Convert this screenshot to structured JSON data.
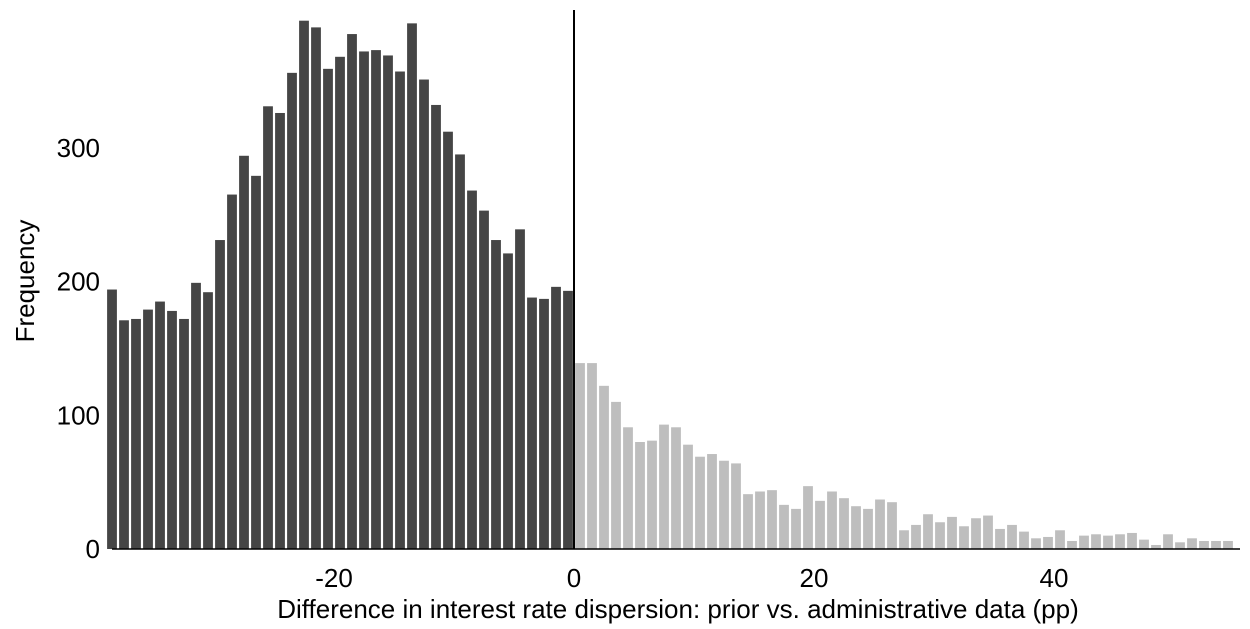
{
  "chart_data": {
    "type": "bar",
    "title": "",
    "xlabel": "Difference in interest rate dispersion: prior vs. administrative data (pp)",
    "ylabel": "Frequency",
    "xlim": [
      -38.5,
      55.5
    ],
    "ylim": [
      0,
      400
    ],
    "grid": false,
    "legend": "none",
    "bin_width": 1,
    "x_ticks": [
      -20,
      0,
      20,
      40
    ],
    "x_tick_labels": [
      "-20",
      "0",
      "20",
      "40"
    ],
    "y_ticks": [
      0,
      100,
      200,
      300
    ],
    "y_tick_labels": [
      "0",
      "100",
      "200",
      "300"
    ],
    "reference_line_x": 0,
    "colors": {
      "negative": "#454545",
      "positive": "#bebebe",
      "axis": "#000000"
    },
    "series": [
      {
        "x": [
          -38.5,
          -37.5,
          -36.5,
          -35.5,
          -34.5,
          -33.5,
          -32.5,
          -31.5,
          -30.5,
          -29.5,
          -28.5,
          -27.5,
          -26.5,
          -25.5,
          -24.5,
          -23.5,
          -22.5,
          -21.5,
          -20.5,
          -19.5,
          -18.5,
          -17.5,
          -16.5,
          -15.5,
          -14.5,
          -13.5,
          -12.5,
          -11.5,
          -10.5,
          -9.5,
          -8.5,
          -7.5,
          -6.5,
          -5.5,
          -4.5,
          -3.5,
          -2.5,
          -1.5,
          -0.5
        ],
        "values": [
          194,
          171,
          172,
          179,
          185,
          178,
          172,
          199,
          192,
          231,
          265,
          294,
          279,
          331,
          326,
          356,
          395,
          390,
          359,
          368,
          385,
          372,
          373,
          369,
          357,
          393,
          351,
          332,
          312,
          295,
          268,
          253,
          231,
          221,
          239,
          188,
          187,
          196,
          193
        ]
      },
      {
        "x": [
          0.5,
          1.5,
          2.5,
          3.5,
          4.5,
          5.5,
          6.5,
          7.5,
          8.5,
          9.5,
          10.5,
          11.5,
          12.5,
          13.5,
          14.5,
          15.5,
          16.5,
          17.5,
          18.5,
          19.5,
          20.5,
          21.5,
          22.5,
          23.5,
          24.5,
          25.5,
          26.5,
          27.5,
          28.5,
          29.5,
          30.5,
          31.5,
          32.5,
          33.5,
          34.5,
          35.5,
          36.5,
          37.5,
          38.5,
          39.5,
          40.5,
          41.5,
          42.5,
          43.5,
          44.5,
          45.5,
          46.5,
          47.5,
          48.5,
          49.5,
          50.5,
          51.5,
          52.5,
          53.5,
          54.5
        ],
        "values": [
          139,
          139,
          122,
          110,
          91,
          80,
          81,
          93,
          91,
          78,
          69,
          71,
          66,
          64,
          41,
          43,
          44,
          33,
          30,
          47,
          36,
          43,
          38,
          32,
          30,
          37,
          35,
          14,
          18,
          26,
          20,
          24,
          17,
          23,
          25,
          15,
          18,
          13,
          8,
          9,
          14,
          6,
          10,
          11,
          10,
          11,
          12,
          7,
          3,
          11,
          5,
          8,
          6,
          6,
          6
        ]
      }
    ]
  }
}
